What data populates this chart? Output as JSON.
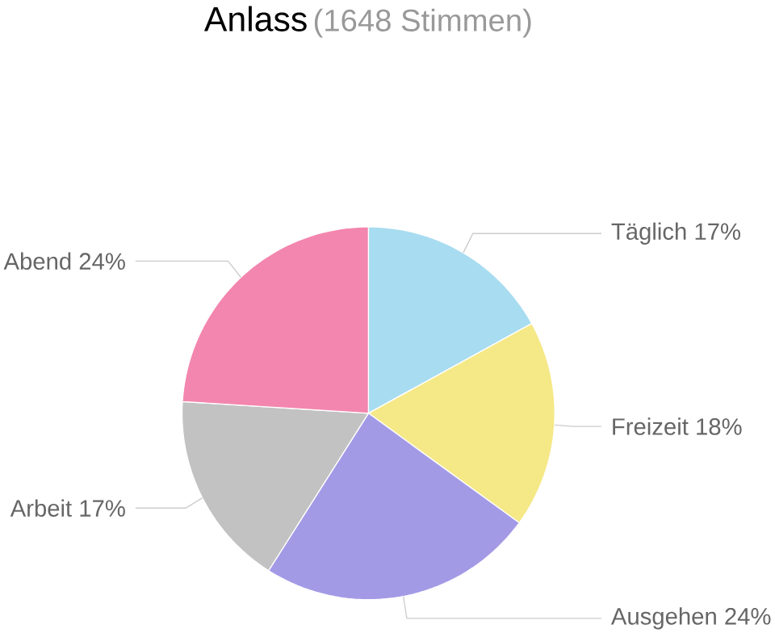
{
  "chart_data": {
    "type": "pie",
    "title": "Anlass",
    "subtitle": "(1648 Stimmen)",
    "categories": [
      "Täglich",
      "Freizeit",
      "Ausgehen",
      "Arbeit",
      "Abend"
    ],
    "values": [
      17,
      18,
      24,
      17,
      24
    ],
    "value_labels": [
      "17%",
      "18%",
      "24%",
      "17%",
      "24%"
    ],
    "colors": [
      "#a8dcf0",
      "#f5e887",
      "#a39ae6",
      "#c2c2c2",
      "#f386ae"
    ]
  }
}
